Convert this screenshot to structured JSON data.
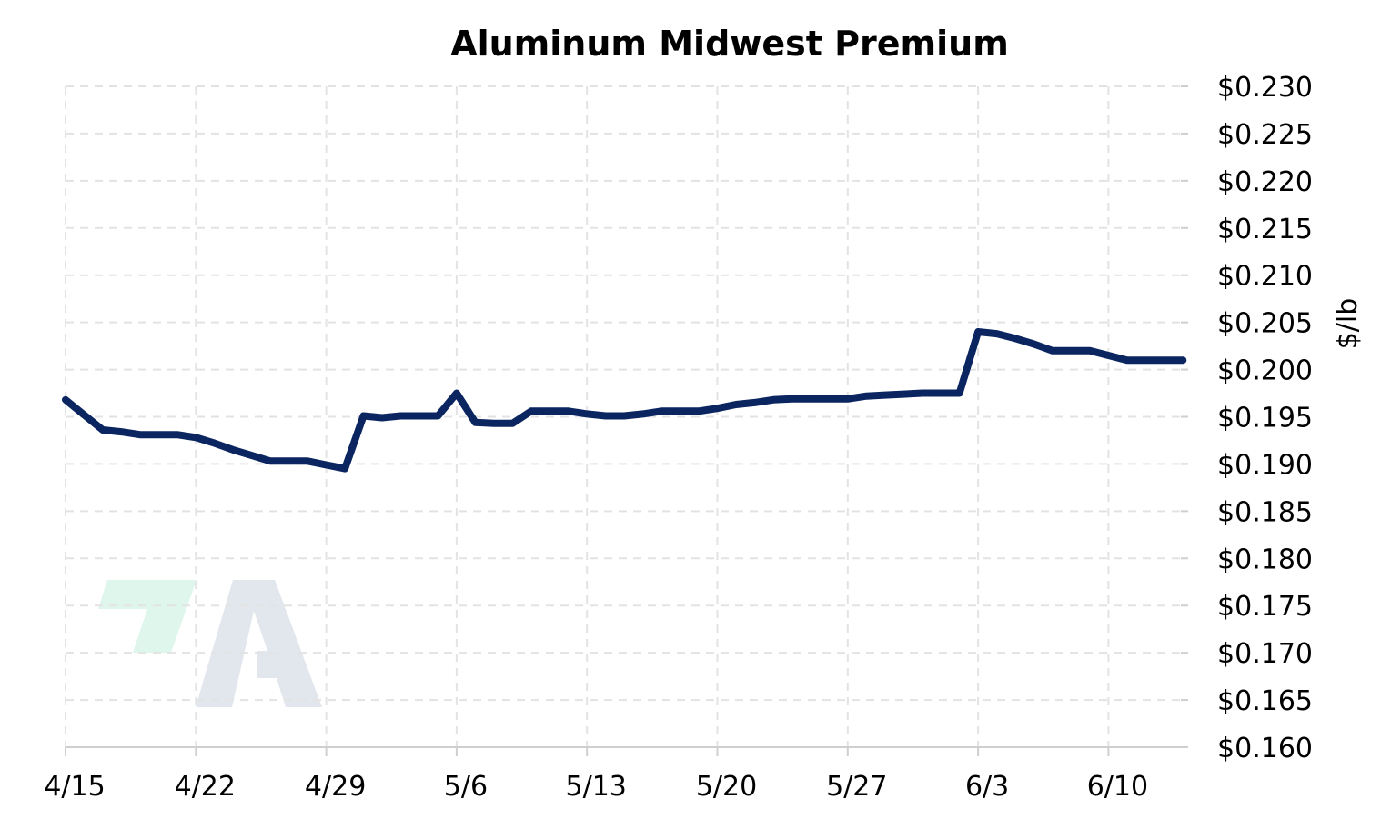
{
  "colors": {
    "series": "#0b2560",
    "watermark_green": "#def6ec",
    "watermark_gray": "#e2e6ed"
  },
  "watermark": {
    "icon": "brand-logo-icon"
  },
  "chart_data": {
    "type": "line",
    "title": "Aluminum Midwest Premium",
    "xlabel": "",
    "ylabel": "$/lb",
    "ylim": [
      0.16,
      0.23
    ],
    "y_ticks": [
      0.16,
      0.165,
      0.17,
      0.175,
      0.18,
      0.185,
      0.19,
      0.195,
      0.2,
      0.205,
      0.21,
      0.215,
      0.22,
      0.225,
      0.23
    ],
    "y_tick_labels": [
      "$0.160",
      "$0.165",
      "$0.170",
      "$0.175",
      "$0.180",
      "$0.185",
      "$0.190",
      "$0.195",
      "$0.200",
      "$0.205",
      "$0.210",
      "$0.215",
      "$0.220",
      "$0.225",
      "$0.230"
    ],
    "x_ticks": [
      "4/15",
      "4/22",
      "4/29",
      "5/6",
      "5/13",
      "5/20",
      "5/27",
      "6/3",
      "6/10"
    ],
    "x_range": [
      "4/15",
      "6/15"
    ],
    "grid": true,
    "legend": "none",
    "y_axis_position": "right",
    "series": [
      {
        "x": [
          "4/15",
          "4/17",
          "4/18",
          "4/19",
          "4/20",
          "4/21",
          "4/22",
          "4/23",
          "4/24",
          "4/25",
          "4/26",
          "4/27",
          "4/28",
          "4/29",
          "4/30",
          "5/1",
          "5/2",
          "5/3",
          "5/4",
          "5/5",
          "5/6",
          "5/7",
          "5/8",
          "5/9",
          "5/10",
          "5/11",
          "5/12",
          "5/13",
          "5/14",
          "5/15",
          "5/16",
          "5/17",
          "5/18",
          "5/19",
          "5/20",
          "5/21",
          "5/22",
          "5/23",
          "5/24",
          "5/25",
          "5/26",
          "5/27",
          "5/28",
          "5/29",
          "5/30",
          "5/31",
          "6/1",
          "6/2",
          "6/3",
          "6/4",
          "6/5",
          "6/6",
          "6/7",
          "6/8",
          "6/9",
          "6/10",
          "6/11",
          "6/12",
          "6/13",
          "6/14"
        ],
        "values": [
          0.1968,
          0.1936,
          0.1934,
          0.1931,
          0.1931,
          0.1931,
          0.1928,
          0.1922,
          0.1915,
          0.1909,
          0.1903,
          0.1903,
          0.1903,
          0.1899,
          0.1895,
          0.1951,
          0.1949,
          0.1951,
          0.1951,
          0.1951,
          0.1975,
          0.1944,
          0.1943,
          0.1943,
          0.1956,
          0.1956,
          0.1956,
          0.1953,
          0.1951,
          0.1951,
          0.1953,
          0.1956,
          0.1956,
          0.1956,
          0.1959,
          0.1963,
          0.1965,
          0.1968,
          0.1969,
          0.1969,
          0.1969,
          0.1969,
          0.1972,
          0.1973,
          0.1974,
          0.1975,
          0.1975,
          0.1975,
          0.204,
          0.2038,
          0.2033,
          0.2027,
          0.202,
          0.202,
          0.202,
          0.2015,
          0.201,
          0.201,
          0.201,
          0.201
        ]
      }
    ]
  }
}
